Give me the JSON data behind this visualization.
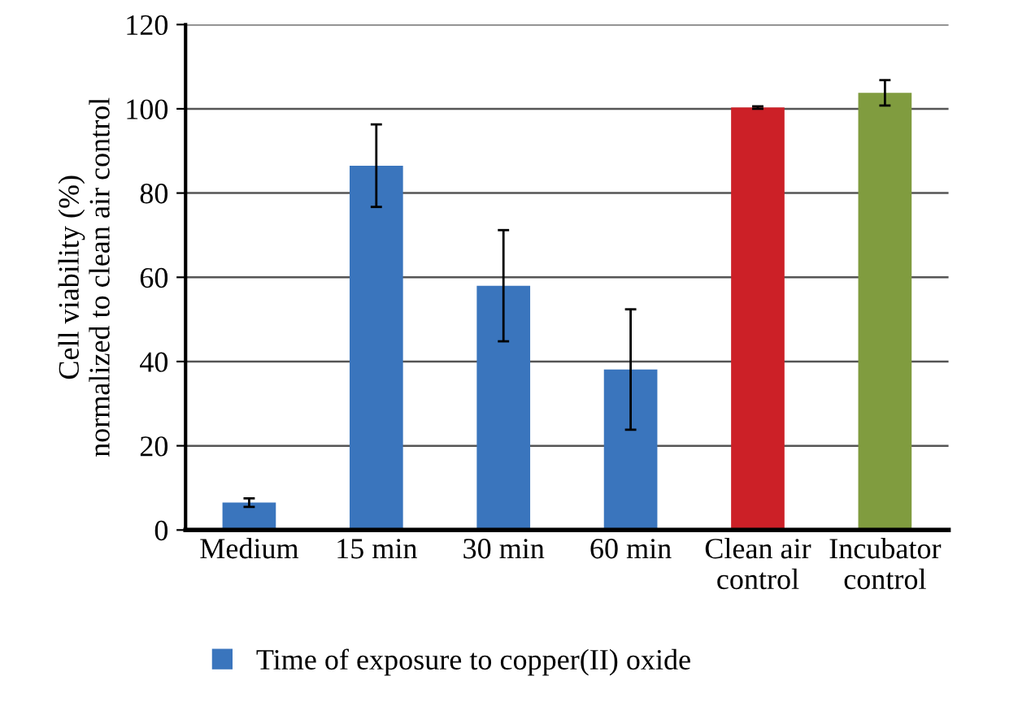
{
  "chart_data": {
    "type": "bar",
    "ylabel": "Cell viability (%)\nnormalized to clean air control",
    "categories": [
      "Medium",
      "15 min",
      "30 min",
      "60 min",
      "Clean air\ncontrol",
      "Incubator\ncontrol"
    ],
    "series": [
      {
        "name": "Time of exposure to copper(II) oxide",
        "color": "#3a75bd",
        "colors": [
          "#3a75bd",
          "#3a75bd",
          "#3a75bd",
          "#3a75bd",
          "#cc2027",
          "#809c3f"
        ],
        "values": [
          6.5,
          86.5,
          58,
          38.1,
          100.3,
          103.8
        ],
        "errors": [
          1,
          9.8,
          13.2,
          14.3,
          0.3,
          3
        ]
      }
    ],
    "ylim": [
      0,
      120
    ],
    "yticks": [
      0,
      20,
      40,
      60,
      80,
      100,
      120
    ],
    "grid": "y",
    "legend": "bottom left"
  }
}
